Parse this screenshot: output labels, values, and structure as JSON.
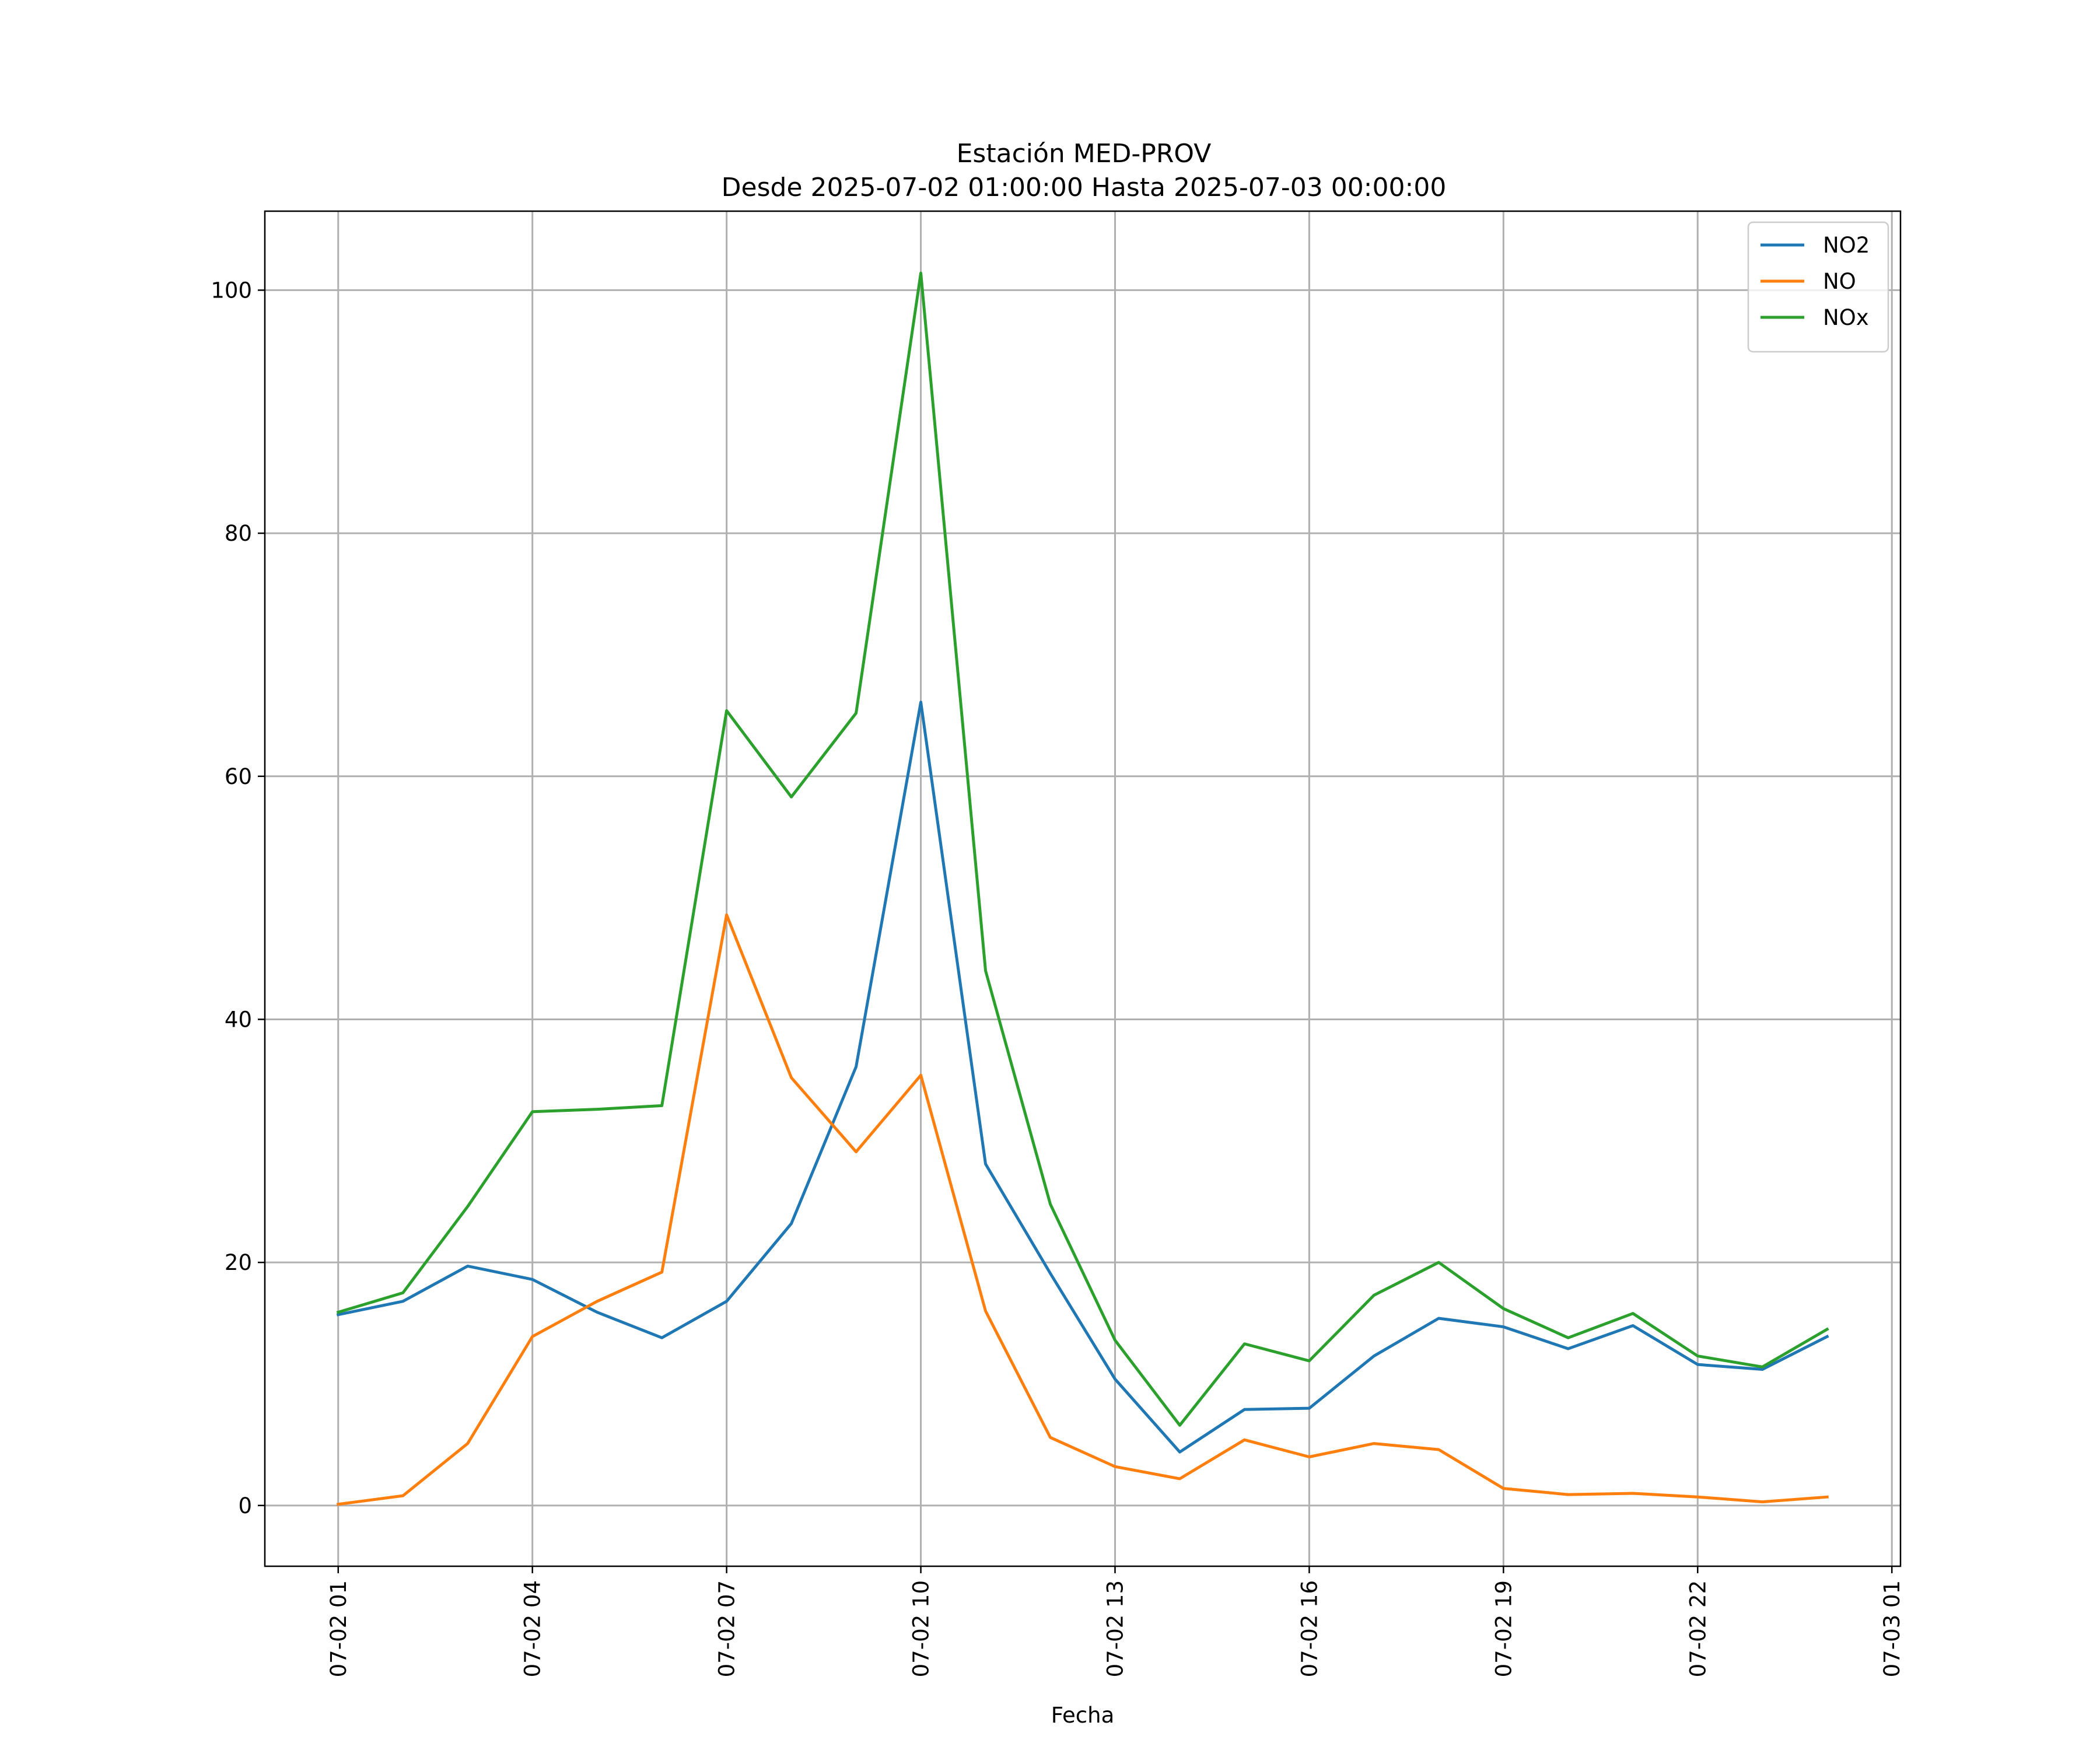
{
  "chart_data": {
    "type": "line",
    "title": "Estación MED-PROV",
    "subtitle": "Desde 2025-07-02 01:00:00 Hasta 2025-07-03 00:00:00",
    "xlabel": "Fecha",
    "ylabel": "",
    "x": [
      "2025-07-02 01:00",
      "2025-07-02 02:00",
      "2025-07-02 03:00",
      "2025-07-02 04:00",
      "2025-07-02 05:00",
      "2025-07-02 06:00",
      "2025-07-02 07:00",
      "2025-07-02 08:00",
      "2025-07-02 09:00",
      "2025-07-02 10:00",
      "2025-07-02 11:00",
      "2025-07-02 12:00",
      "2025-07-02 13:00",
      "2025-07-02 14:00",
      "2025-07-02 15:00",
      "2025-07-02 16:00",
      "2025-07-02 17:00",
      "2025-07-02 18:00",
      "2025-07-02 19:00",
      "2025-07-02 20:00",
      "2025-07-02 21:00",
      "2025-07-02 22:00",
      "2025-07-02 23:00",
      "2025-07-03 00:00"
    ],
    "xlim": [
      "2025-07-01 23:52",
      "2025-07-03 01:08"
    ],
    "ylim": [
      -5,
      106.5
    ],
    "x_ticks": [
      {
        "value": "2025-07-02 01:00",
        "label": "07-02 01"
      },
      {
        "value": "2025-07-02 04:00",
        "label": "07-02 04"
      },
      {
        "value": "2025-07-02 07:00",
        "label": "07-02 07"
      },
      {
        "value": "2025-07-02 10:00",
        "label": "07-02 10"
      },
      {
        "value": "2025-07-02 13:00",
        "label": "07-02 13"
      },
      {
        "value": "2025-07-02 16:00",
        "label": "07-02 16"
      },
      {
        "value": "2025-07-02 19:00",
        "label": "07-02 19"
      },
      {
        "value": "2025-07-02 22:00",
        "label": "07-02 22"
      },
      {
        "value": "2025-07-03 01:00",
        "label": "07-03 01"
      }
    ],
    "y_ticks": [
      {
        "value": 0,
        "label": "0"
      },
      {
        "value": 20,
        "label": "20"
      },
      {
        "value": 40,
        "label": "40"
      },
      {
        "value": 60,
        "label": "60"
      },
      {
        "value": 80,
        "label": "80"
      },
      {
        "value": 100,
        "label": "100"
      }
    ],
    "grid": true,
    "legend_position": "top-right",
    "series": [
      {
        "name": "NO2",
        "color": "#1f77b4",
        "values": [
          15.7,
          16.8,
          19.7,
          18.6,
          15.9,
          13.8,
          16.8,
          23.2,
          36.1,
          66.1,
          28.1,
          19.1,
          10.4,
          4.4,
          7.9,
          8.0,
          12.3,
          15.4,
          14.7,
          12.9,
          14.8,
          11.6,
          11.2,
          13.9
        ]
      },
      {
        "name": "NO",
        "color": "#ff7f0e",
        "values": [
          0.1,
          0.8,
          5.1,
          13.9,
          16.8,
          19.2,
          48.6,
          35.2,
          29.1,
          35.4,
          16.0,
          5.6,
          3.2,
          2.2,
          5.4,
          4.0,
          5.1,
          4.6,
          1.4,
          0.9,
          1.0,
          0.7,
          0.3,
          0.7
        ]
      },
      {
        "name": "NOx",
        "color": "#2ca02c",
        "values": [
          15.9,
          17.5,
          24.6,
          32.4,
          32.6,
          32.9,
          65.4,
          58.3,
          65.2,
          101.4,
          44.0,
          24.8,
          13.6,
          6.6,
          13.3,
          11.9,
          17.3,
          20.0,
          16.2,
          13.8,
          15.8,
          12.3,
          11.4,
          14.5
        ]
      }
    ]
  }
}
